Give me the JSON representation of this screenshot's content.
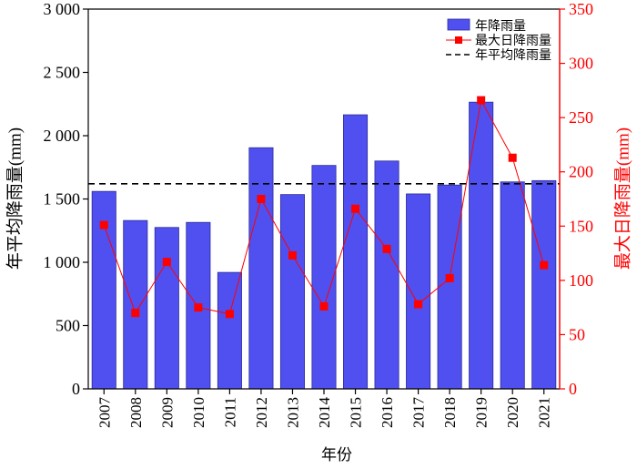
{
  "chart_data": {
    "type": "bar",
    "xlabel": "年份",
    "ylabel": "年平均降雨量(mm)",
    "y2label": "最大日降雨量(mm)",
    "categories": [
      "2007",
      "2008",
      "2009",
      "2010",
      "2011",
      "2012",
      "2013",
      "2014",
      "2015",
      "2016",
      "2017",
      "2018",
      "2019",
      "2020",
      "2021"
    ],
    "series": [
      {
        "name": "年降雨量",
        "type": "bar",
        "color": "#5050f0",
        "values": [
          1560,
          1330,
          1275,
          1315,
          920,
          1905,
          1535,
          1765,
          2165,
          1800,
          1540,
          1610,
          2265,
          1635,
          1645
        ]
      },
      {
        "name": "最大日降雨量",
        "type": "line",
        "axis": "y2",
        "color": "#ff0000",
        "values": [
          151,
          70,
          117,
          75,
          69,
          175,
          123,
          76,
          166,
          129,
          78,
          102,
          266,
          213,
          114
        ]
      }
    ],
    "reference_lines": [
      {
        "name": "年平均降雨量",
        "value": 1620,
        "color": "#000000",
        "style": "dashed"
      }
    ],
    "ylim": [
      0,
      3000
    ],
    "yticks": [
      0,
      500,
      {
        "value": 1000,
        "label": "1 000"
      },
      {
        "value": 1500,
        "label": "1 500"
      },
      {
        "value": 2000,
        "label": "2 000"
      },
      {
        "value": 2500,
        "label": "2 500"
      },
      {
        "value": 3000,
        "label": "3 000"
      }
    ],
    "y2lim": [
      0,
      350
    ],
    "y2ticks": [
      0,
      50,
      100,
      150,
      200,
      250,
      300,
      350
    ],
    "y2color": "#ff0000",
    "legend": "upper right"
  }
}
